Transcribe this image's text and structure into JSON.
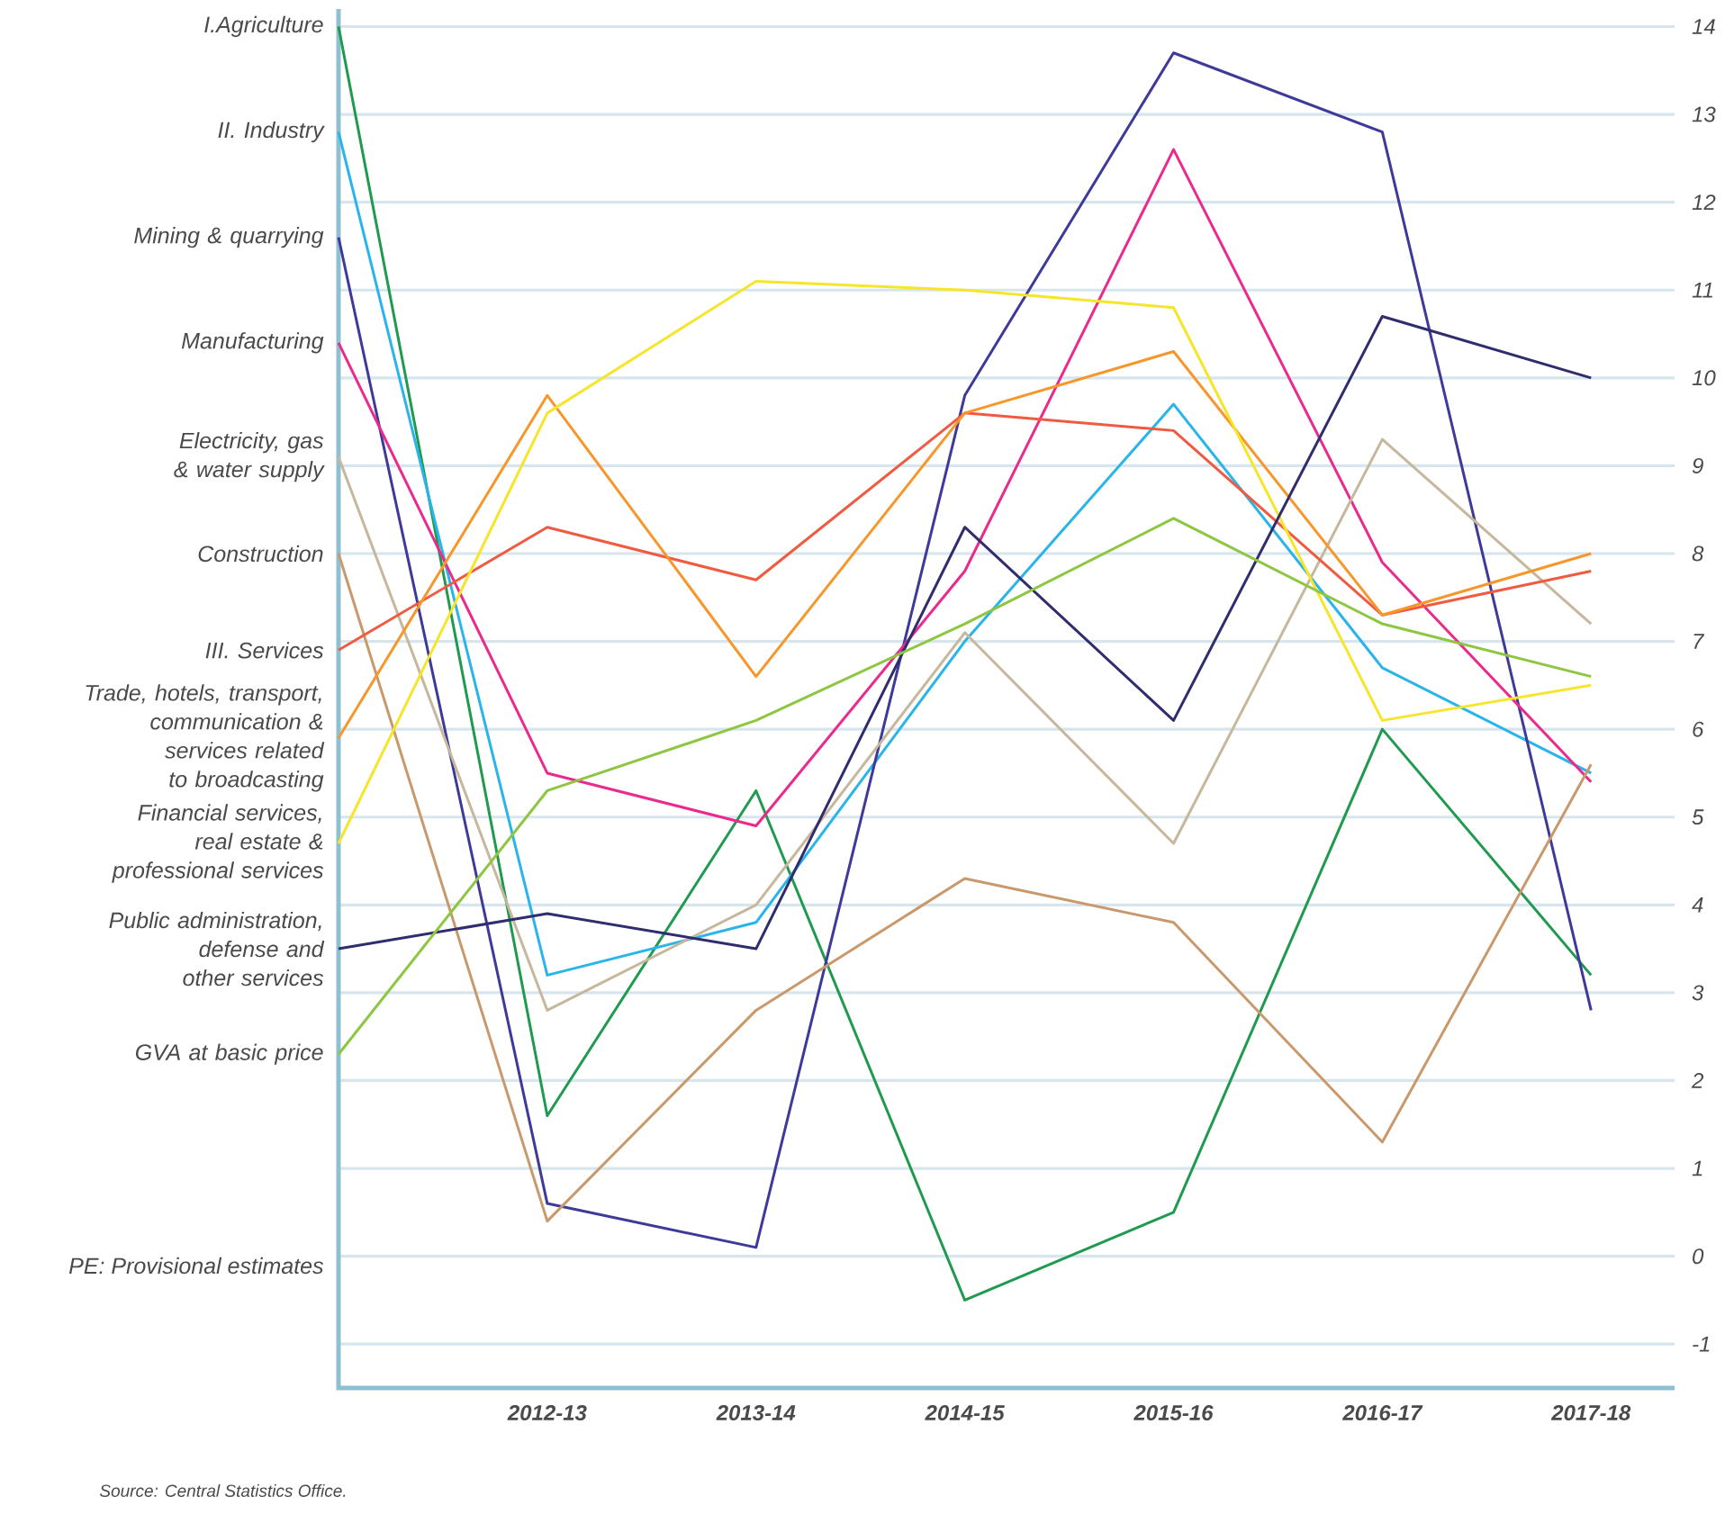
{
  "chart_data": {
    "type": "line",
    "categories": [
      null,
      "2012-13",
      "2013-14",
      "2014-15",
      "2015-16",
      "2016-17",
      "2017-18"
    ],
    "series": [
      {
        "name": "I.Agriculture",
        "color": "#1f9a4f",
        "values": [
          14.0,
          1.6,
          5.3,
          -0.5,
          0.5,
          6.0,
          3.2
        ]
      },
      {
        "name": "II. Industry",
        "color": "#29b5ea",
        "values": [
          12.8,
          3.2,
          3.8,
          7.0,
          9.7,
          6.7,
          5.5
        ]
      },
      {
        "name": "Mining & quarrying",
        "color": "#3d3a9a",
        "values": [
          11.6,
          0.6,
          0.1,
          9.8,
          13.7,
          12.8,
          2.8
        ]
      },
      {
        "name": "Manufacturing",
        "color": "#ea2a8c",
        "values": [
          10.4,
          5.5,
          4.9,
          7.8,
          12.6,
          7.9,
          5.4
        ]
      },
      {
        "name": "Electricity, gas & water supply",
        "color": "#c6b79d",
        "values": [
          9.1,
          2.8,
          4.0,
          7.1,
          4.7,
          9.3,
          7.2
        ]
      },
      {
        "name": "Construction",
        "color": "#c9996b",
        "values": [
          8.0,
          0.4,
          2.8,
          4.3,
          3.8,
          1.3,
          5.6
        ]
      },
      {
        "name": "III. Services",
        "color": "#f05a40",
        "values": [
          6.9,
          8.3,
          7.7,
          9.6,
          9.4,
          7.3,
          7.8
        ]
      },
      {
        "name": "Trade, hotels, transport, communication & services related to broadcasting",
        "color": "#f7962a",
        "values": [
          5.9,
          9.8,
          6.6,
          9.6,
          10.3,
          7.3,
          8.0
        ]
      },
      {
        "name": "Financial services, real estate & professional services",
        "color": "#f6e52a",
        "values": [
          4.7,
          9.6,
          11.1,
          11.0,
          10.8,
          6.1,
          6.5
        ]
      },
      {
        "name": "Public administration, defense and other services",
        "color": "#2f2d6d",
        "values": [
          3.5,
          3.9,
          3.5,
          8.3,
          6.1,
          10.7,
          10.0
        ]
      },
      {
        "name": "GVA at basic price",
        "color": "#8dc641",
        "values": [
          2.3,
          5.3,
          6.1,
          7.2,
          8.4,
          7.2,
          6.6
        ]
      }
    ],
    "ylim": [
      -1.5,
      14.2
    ],
    "yticks": [
      -1,
      0,
      1,
      2,
      3,
      4,
      5,
      6,
      7,
      8,
      9,
      10,
      11,
      12,
      13,
      14
    ],
    "grid": "y",
    "annotations": [
      "PE: Provisional estimates",
      "Source: Central  Statistics Office."
    ]
  }
}
